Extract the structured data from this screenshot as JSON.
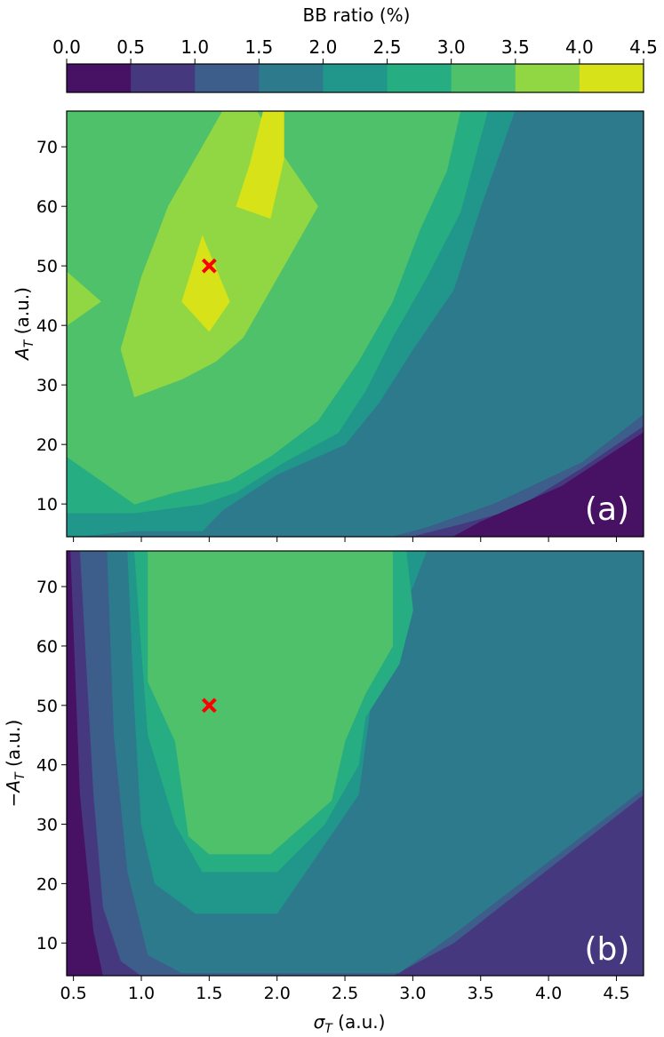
{
  "colorbar": {
    "label": "BB ratio (%)",
    "ticks": [
      "0.0",
      "0.5",
      "1.0",
      "1.5",
      "2.0",
      "2.5",
      "3.0",
      "3.5",
      "4.0",
      "4.5"
    ],
    "colors": [
      "#471164",
      "#45387f",
      "#3d5d8a",
      "#2e7a8d",
      "#21978b",
      "#26ad81",
      "#4fc16a",
      "#90d743",
      "#d7e219"
    ],
    "range": [
      0.0,
      4.5
    ]
  },
  "marker": {
    "color": "#ff0000",
    "symbol": "x"
  },
  "chart_data": [
    {
      "type": "heatmap",
      "panel_label": "(a)",
      "xlabel": "",
      "ylabel": "A_T (a.u.)",
      "x_ticks": [],
      "y_ticks": [
        "10",
        "20",
        "30",
        "40",
        "50",
        "60",
        "70"
      ],
      "xlim": [
        0.45,
        4.7
      ],
      "ylim": [
        4.5,
        76
      ],
      "marker": {
        "x": 1.5,
        "y": 50
      },
      "regions": [
        {
          "level": 3,
          "range": "1.5-2.0",
          "polygon": [
            [
              0.45,
              4.5
            ],
            [
              4.7,
              4.5
            ],
            [
              4.7,
              76
            ],
            [
              0.45,
              76
            ]
          ]
        },
        {
          "level": 4,
          "range": "2.0-2.5",
          "polygon": [
            [
              0.45,
              4.5
            ],
            [
              0.5,
              4.5
            ],
            [
              0.95,
              5.5
            ],
            [
              1.45,
              5.5
            ],
            [
              1.6,
              9
            ],
            [
              2.0,
              15
            ],
            [
              2.5,
              20
            ],
            [
              2.75,
              27
            ],
            [
              3.0,
              36
            ],
            [
              3.3,
              46
            ],
            [
              3.5,
              60
            ],
            [
              3.75,
              76
            ],
            [
              0.45,
              76
            ]
          ]
        },
        {
          "level": 5,
          "range": "2.5-3.0",
          "polygon": [
            [
              0.45,
              8.5
            ],
            [
              0.95,
              8.5
            ],
            [
              1.45,
              10
            ],
            [
              1.7,
              12
            ],
            [
              2.05,
              17
            ],
            [
              2.45,
              22
            ],
            [
              2.65,
              29
            ],
            [
              2.85,
              38
            ],
            [
              3.1,
              48
            ],
            [
              3.35,
              59
            ],
            [
              3.55,
              76
            ],
            [
              0.45,
              76
            ]
          ]
        },
        {
          "level": 6,
          "range": "3.0-3.5",
          "polygon": [
            [
              0.45,
              18
            ],
            [
              0.95,
              10
            ],
            [
              1.25,
              12
            ],
            [
              1.65,
              14
            ],
            [
              1.95,
              18
            ],
            [
              2.3,
              24
            ],
            [
              2.6,
              34
            ],
            [
              2.85,
              44
            ],
            [
              3.05,
              56
            ],
            [
              3.25,
              66
            ],
            [
              3.35,
              76
            ],
            [
              0.95,
              76
            ],
            [
              0.95,
              72
            ],
            [
              0.45,
              69
            ]
          ]
        },
        {
          "level": 6,
          "range": "3.0-3.5",
          "polygon": [
            [
              0.45,
              76
            ],
            [
              0.95,
              76
            ],
            [
              0.95,
              72
            ],
            [
              0.45,
              69
            ]
          ]
        },
        {
          "level": 7,
          "range": "3.5-4.0",
          "polygon": [
            [
              0.45,
              49
            ],
            [
              0.7,
              44
            ],
            [
              0.45,
              40
            ]
          ]
        },
        {
          "level": 7,
          "range": "3.5-4.0",
          "polygon": [
            [
              0.85,
              36
            ],
            [
              0.95,
              28
            ],
            [
              1.3,
              31
            ],
            [
              1.55,
              34
            ],
            [
              1.75,
              38
            ],
            [
              1.95,
              46
            ],
            [
              2.3,
              60
            ],
            [
              2.0,
              70
            ],
            [
              1.85,
              76
            ],
            [
              1.6,
              76
            ],
            [
              1.45,
              70
            ],
            [
              1.2,
              60
            ],
            [
              1.0,
              48
            ]
          ]
        },
        {
          "level": 8,
          "range": "4.0-4.5",
          "polygon": [
            [
              1.3,
              44
            ],
            [
              1.45,
              55
            ],
            [
              1.65,
              44
            ],
            [
              1.5,
              39
            ]
          ]
        },
        {
          "level": 8,
          "range": "4.0-4.5",
          "polygon": [
            [
              1.7,
              60
            ],
            [
              1.8,
              67
            ],
            [
              1.9,
              76
            ],
            [
              2.05,
              76
            ],
            [
              2.05,
              68
            ],
            [
              1.95,
              58
            ]
          ]
        },
        {
          "level": 2,
          "range": "1.0-1.5",
          "polygon": [
            [
              2.85,
              4.5
            ],
            [
              3.1,
              6
            ],
            [
              3.6,
              10
            ],
            [
              4.25,
              17
            ],
            [
              4.7,
              25
            ],
            [
              4.7,
              4.5
            ]
          ]
        },
        {
          "level": 1,
          "range": "0.5-1.0",
          "polygon": [
            [
              3.0,
              4.5
            ],
            [
              3.35,
              6.5
            ],
            [
              3.75,
              9
            ],
            [
              4.25,
              16
            ],
            [
              4.7,
              23
            ],
            [
              4.7,
              4.5
            ]
          ]
        },
        {
          "level": 0,
          "range": "0.0-0.5",
          "polygon": [
            [
              3.3,
              4.5
            ],
            [
              3.5,
              7
            ],
            [
              4.1,
              13
            ],
            [
              4.7,
              22
            ],
            [
              4.7,
              4.5
            ]
          ]
        }
      ]
    },
    {
      "type": "heatmap",
      "panel_label": "(b)",
      "xlabel": "σ_T (a.u.)",
      "ylabel": "−A_T (a.u.)",
      "x_ticks": [
        "0.5",
        "1.0",
        "1.5",
        "2.0",
        "2.5",
        "3.0",
        "3.5",
        "4.0",
        "4.5"
      ],
      "y_ticks": [
        "10",
        "20",
        "30",
        "40",
        "50",
        "60",
        "70"
      ],
      "xlim": [
        0.45,
        4.7
      ],
      "ylim": [
        4.5,
        76
      ],
      "marker": {
        "x": 1.5,
        "y": 50
      },
      "regions": [
        {
          "level": 0,
          "range": "0.0-0.5",
          "polygon": [
            [
              0.45,
              4.5
            ],
            [
              4.7,
              4.5
            ],
            [
              4.7,
              76
            ],
            [
              0.45,
              76
            ]
          ]
        },
        {
          "level": 1,
          "range": "0.5-1.0",
          "polygon": [
            [
              0.48,
              76
            ],
            [
              0.55,
              35
            ],
            [
              0.65,
              12
            ],
            [
              0.72,
              4.5
            ],
            [
              4.7,
              4.5
            ],
            [
              4.7,
              36
            ],
            [
              4.7,
              76
            ]
          ]
        },
        {
          "level": 2,
          "range": "1.0-1.5",
          "polygon": [
            [
              0.55,
              76
            ],
            [
              0.65,
              35
            ],
            [
              0.72,
              16
            ],
            [
              0.85,
              7
            ],
            [
              1.0,
              4.5
            ],
            [
              2.85,
              4.5
            ],
            [
              3.3,
              10
            ],
            [
              4.7,
              35
            ],
            [
              4.7,
              76
            ]
          ]
        },
        {
          "level": 3,
          "range": "1.5-2.0",
          "polygon": [
            [
              0.75,
              76
            ],
            [
              0.8,
              45
            ],
            [
              0.9,
              22
            ],
            [
              1.05,
              8
            ],
            [
              1.3,
              5
            ],
            [
              2.9,
              5
            ],
            [
              3.3,
              11.5
            ],
            [
              4.7,
              36
            ],
            [
              4.7,
              76
            ]
          ]
        },
        {
          "level": 4,
          "range": "2.0-2.5",
          "polygon": [
            [
              0.9,
              76
            ],
            [
              0.95,
              50
            ],
            [
              1.0,
              30
            ],
            [
              1.1,
              20
            ],
            [
              1.4,
              15
            ],
            [
              2.0,
              15
            ],
            [
              2.3,
              25
            ],
            [
              2.6,
              35
            ],
            [
              2.7,
              52
            ],
            [
              2.8,
              62
            ],
            [
              3.0,
              70
            ],
            [
              3.1,
              76
            ]
          ]
        },
        {
          "level": 5,
          "range": "2.5-3.0",
          "polygon": [
            [
              0.95,
              76
            ],
            [
              1.0,
              60
            ],
            [
              1.05,
              45
            ],
            [
              1.25,
              30
            ],
            [
              1.45,
              22
            ],
            [
              2.0,
              22
            ],
            [
              2.35,
              30
            ],
            [
              2.6,
              40
            ],
            [
              2.65,
              48
            ],
            [
              2.9,
              57
            ],
            [
              3.0,
              66
            ],
            [
              2.95,
              76
            ]
          ]
        },
        {
          "level": 6,
          "range": "3.0-3.5",
          "polygon": [
            [
              1.05,
              76
            ],
            [
              1.05,
              54
            ],
            [
              1.25,
              44
            ],
            [
              1.35,
              28
            ],
            [
              1.5,
              25
            ],
            [
              1.95,
              25
            ],
            [
              2.4,
              34
            ],
            [
              2.5,
              44
            ],
            [
              2.65,
              52
            ],
            [
              2.85,
              60
            ],
            [
              2.85,
              76
            ]
          ]
        }
      ]
    }
  ]
}
